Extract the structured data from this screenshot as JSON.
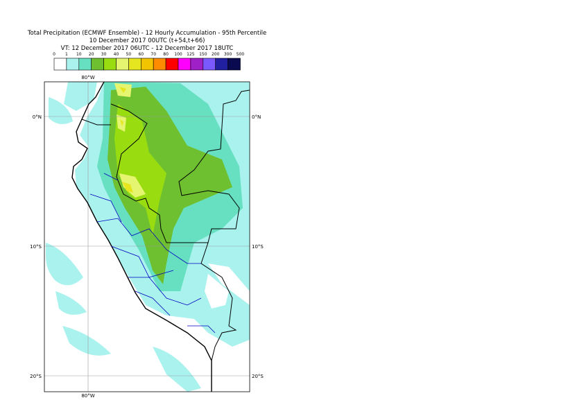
{
  "header": {
    "title": [
      "Total Precipitation (ECMWF Ensemble) - 12 Hourly Accumulation - 95th Percentile",
      "10 December 2017 00UTC (t+54,t+66)",
      "VT: 12 December 2017 06UTC - 12 December 2017 18UTC"
    ]
  },
  "legend": {
    "labels": [
      "0",
      "1",
      "10",
      "20",
      "30",
      "40",
      "50",
      "60",
      "70",
      "80",
      "100",
      "125",
      "150",
      "200",
      "300",
      "500"
    ],
    "colors": [
      "#ffffff",
      "#aaf2ee",
      "#66e0c0",
      "#6ec030",
      "#99dd11",
      "#e6f570",
      "#e6e620",
      "#f2c400",
      "#ff8c00",
      "#ff0000",
      "#ff00ff",
      "#a020c8",
      "#7a5aff",
      "#2020a0",
      "#0a0a50"
    ]
  },
  "map": {
    "lon_labels": [
      "80°W"
    ],
    "lat_labels": [
      "0°N",
      "10°S",
      "20°S"
    ]
  }
}
